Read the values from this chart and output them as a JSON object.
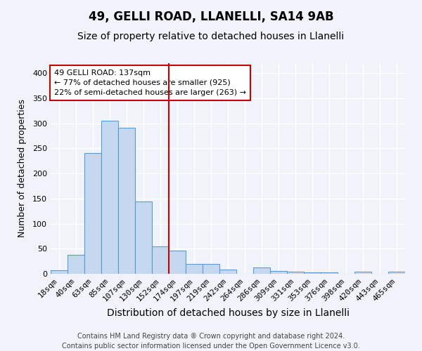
{
  "title1": "49, GELLI ROAD, LLANELLI, SA14 9AB",
  "title2": "Size of property relative to detached houses in Llanelli",
  "xlabel": "Distribution of detached houses by size in Llanelli",
  "ylabel": "Number of detached properties",
  "bin_labels": [
    "18sqm",
    "40sqm",
    "63sqm",
    "85sqm",
    "107sqm",
    "130sqm",
    "152sqm",
    "174sqm",
    "197sqm",
    "219sqm",
    "242sqm",
    "264sqm",
    "286sqm",
    "309sqm",
    "331sqm",
    "353sqm",
    "376sqm",
    "398sqm",
    "420sqm",
    "443sqm",
    "465sqm"
  ],
  "bar_values": [
    7,
    38,
    241,
    305,
    291,
    144,
    55,
    46,
    20,
    20,
    9,
    0,
    12,
    5,
    4,
    3,
    3,
    0,
    4,
    0,
    4
  ],
  "bar_color": "#c5d8f0",
  "bar_edge_color": "#5b9bd5",
  "vline_x": 6.5,
  "vline_color": "#cc0000",
  "annotation_text": "49 GELLI ROAD: 137sqm\n← 77% of detached houses are smaller (925)\n22% of semi-detached houses are larger (263) →",
  "annotation_box_color": "#ffffff",
  "annotation_box_edge": "#cc0000",
  "ylim": [
    0,
    420
  ],
  "yticks": [
    0,
    50,
    100,
    150,
    200,
    250,
    300,
    350,
    400
  ],
  "footer": "Contains HM Land Registry data ® Crown copyright and database right 2024.\nContains public sector information licensed under the Open Government Licence v3.0.",
  "bg_color": "#f0f4fa",
  "plot_bg_color": "#f0f4fa",
  "grid_color": "#ffffff",
  "title1_fontsize": 12,
  "title2_fontsize": 10,
  "xlabel_fontsize": 10,
  "ylabel_fontsize": 9,
  "tick_fontsize": 8,
  "footer_fontsize": 7,
  "annot_fontsize": 8
}
